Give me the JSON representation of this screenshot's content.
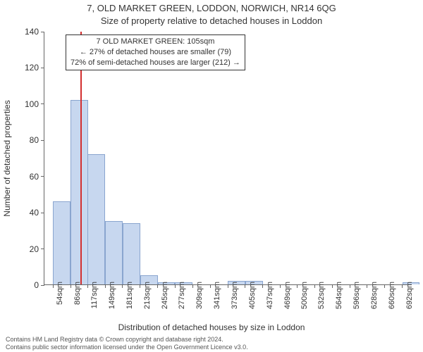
{
  "title": "7, OLD MARKET GREEN, LODDON, NORWICH, NR14 6QG",
  "subtitle": "Size of property relative to detached houses in Loddon",
  "y_axis_label": "Number of detached properties",
  "x_axis_label": "Distribution of detached houses by size in Loddon",
  "footer_line1": "Contains HM Land Registry data © Crown copyright and database right 2024.",
  "footer_line2": "Contains public sector information licensed under the Open Government Licence v3.0.",
  "info_box": {
    "line1": "7 OLD MARKET GREEN: 105sqm",
    "line2": "← 27% of detached houses are smaller (79)",
    "line3": "72% of semi-detached houses are larger (212) →"
  },
  "chart": {
    "type": "bar",
    "background_color": "#ffffff",
    "axis_color": "#666666",
    "bar_fill": "#c7d7ef",
    "bar_stroke": "#8aa5cf",
    "marker_color": "#d32f2f",
    "ylim": [
      0,
      140
    ],
    "ytick_step": 20,
    "yticks": [
      0,
      20,
      40,
      60,
      80,
      100,
      120,
      140
    ],
    "x_categories": [
      "54sqm",
      "86sqm",
      "117sqm",
      "149sqm",
      "181sqm",
      "213sqm",
      "245sqm",
      "277sqm",
      "309sqm",
      "341sqm",
      "373sqm",
      "405sqm",
      "437sqm",
      "469sqm",
      "500sqm",
      "532sqm",
      "564sqm",
      "596sqm",
      "628sqm",
      "660sqm",
      "692sqm"
    ],
    "bar_bin_width": 32,
    "bars": [
      {
        "x": 54,
        "h": 46
      },
      {
        "x": 86,
        "h": 102
      },
      {
        "x": 117,
        "h": 72
      },
      {
        "x": 149,
        "h": 35
      },
      {
        "x": 181,
        "h": 34
      },
      {
        "x": 213,
        "h": 5
      },
      {
        "x": 245,
        "h": 1
      },
      {
        "x": 277,
        "h": 1
      },
      {
        "x": 309,
        "h": 0
      },
      {
        "x": 341,
        "h": 0
      },
      {
        "x": 373,
        "h": 2
      },
      {
        "x": 405,
        "h": 2
      },
      {
        "x": 437,
        "h": 0
      },
      {
        "x": 469,
        "h": 0
      },
      {
        "x": 500,
        "h": 0
      },
      {
        "x": 532,
        "h": 0
      },
      {
        "x": 564,
        "h": 0
      },
      {
        "x": 596,
        "h": 0
      },
      {
        "x": 628,
        "h": 0
      },
      {
        "x": 660,
        "h": 0
      },
      {
        "x": 692,
        "h": 1
      }
    ],
    "x_domain": [
      38,
      708
    ],
    "marker_x": 105,
    "title_fontsize": 13,
    "label_fontsize": 12,
    "tick_fontsize_x": 11,
    "tick_fontsize_y": 12
  }
}
